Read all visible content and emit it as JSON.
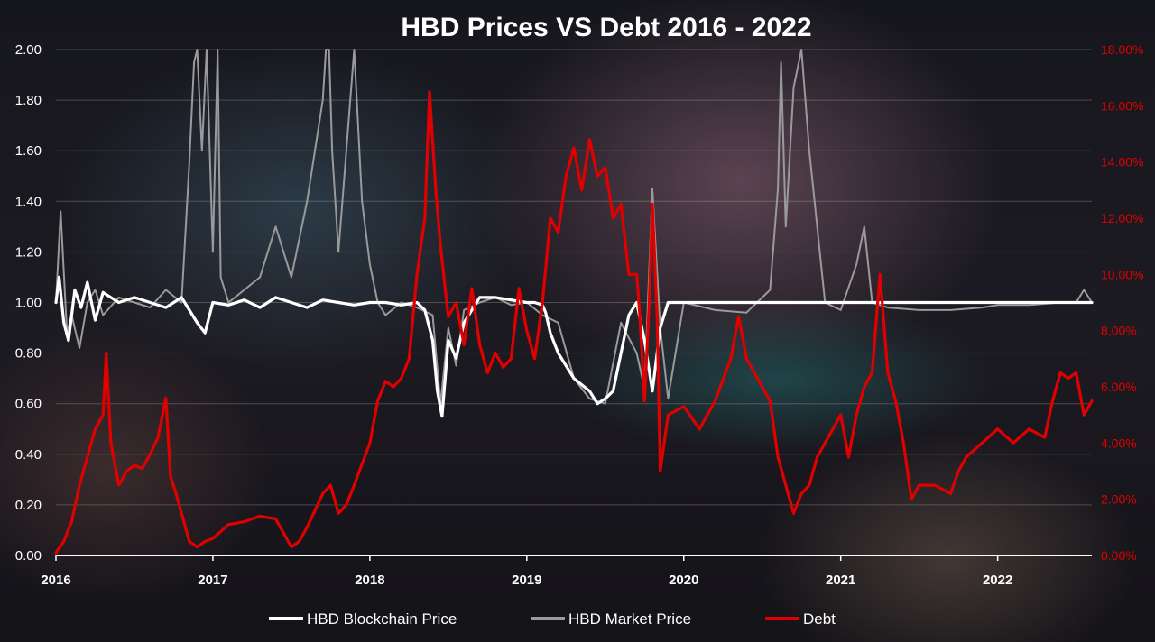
{
  "chart_data": {
    "type": "line",
    "title": "HBD Prices VS Debt 2016 - 2022",
    "xlabel": "",
    "ylabel": "",
    "x_range": [
      2016.0,
      2022.6
    ],
    "x_ticks": [
      "2016",
      "2017",
      "2018",
      "2019",
      "2020",
      "2021",
      "2022"
    ],
    "y_left": {
      "range": [
        0,
        2.0
      ],
      "ticks": [
        "0.00",
        "0.20",
        "0.40",
        "0.60",
        "0.80",
        "1.00",
        "1.20",
        "1.40",
        "1.60",
        "1.80",
        "2.00"
      ]
    },
    "y_right": {
      "range": [
        0,
        18
      ],
      "ticks": [
        "0.00%",
        "2.00%",
        "4.00%",
        "6.00%",
        "8.00%",
        "10.00%",
        "12.00%",
        "14.00%",
        "16.00%",
        "18.00%"
      ]
    },
    "grid": true,
    "legend": "bottom",
    "colors": {
      "blockchain": "#ffffff",
      "market": "#9a9a9a",
      "debt": "#e00000",
      "right_axis": "#e00000"
    },
    "series": [
      {
        "name": "HBD Market Price",
        "axis": "left",
        "x": [
          2016.0,
          2016.03,
          2016.07,
          2016.1,
          2016.15,
          2016.2,
          2016.25,
          2016.3,
          2016.4,
          2016.5,
          2016.6,
          2016.7,
          2016.8,
          2016.85,
          2016.88,
          2016.9,
          2016.93,
          2016.96,
          2017.0,
          2017.03,
          2017.05,
          2017.1,
          2017.2,
          2017.3,
          2017.4,
          2017.5,
          2017.6,
          2017.7,
          2017.72,
          2017.74,
          2017.76,
          2017.8,
          2017.9,
          2017.95,
          2018.0,
          2018.05,
          2018.1,
          2018.2,
          2018.3,
          2018.4,
          2018.45,
          2018.5,
          2018.55,
          2018.6,
          2018.7,
          2018.8,
          2018.9,
          2019.0,
          2019.1,
          2019.2,
          2019.3,
          2019.4,
          2019.5,
          2019.6,
          2019.7,
          2019.75,
          2019.8,
          2019.85,
          2019.9,
          2020.0,
          2020.2,
          2020.4,
          2020.55,
          2020.6,
          2020.62,
          2020.65,
          2020.7,
          2020.75,
          2020.8,
          2020.9,
          2021.0,
          2021.1,
          2021.15,
          2021.2,
          2021.3,
          2021.5,
          2021.7,
          2021.9,
          2022.0,
          2022.2,
          2022.4,
          2022.5,
          2022.55,
          2022.6
        ],
        "y": [
          1.0,
          1.36,
          0.88,
          0.95,
          0.82,
          1.0,
          1.05,
          0.95,
          1.02,
          1.0,
          0.98,
          1.05,
          1.0,
          1.55,
          1.95,
          2.0,
          1.6,
          2.0,
          1.2,
          2.0,
          1.1,
          1.0,
          1.05,
          1.1,
          1.3,
          1.1,
          1.4,
          1.8,
          2.0,
          2.0,
          1.6,
          1.2,
          2.0,
          1.4,
          1.15,
          1.0,
          0.95,
          1.0,
          0.98,
          0.95,
          0.6,
          0.9,
          0.75,
          0.97,
          1.0,
          1.02,
          0.99,
          1.0,
          0.95,
          0.92,
          0.7,
          0.62,
          0.6,
          0.92,
          0.8,
          0.66,
          1.45,
          0.9,
          0.62,
          1.0,
          0.97,
          0.96,
          1.05,
          1.45,
          1.95,
          1.3,
          1.85,
          2.0,
          1.6,
          1.0,
          0.97,
          1.15,
          1.3,
          1.0,
          0.98,
          0.97,
          0.97,
          0.98,
          0.99,
          0.99,
          1.0,
          1.0,
          1.05,
          1.0
        ]
      },
      {
        "name": "HBD Blockchain Price",
        "axis": "left",
        "x": [
          2016.0,
          2016.02,
          2016.05,
          2016.08,
          2016.12,
          2016.16,
          2016.2,
          2016.25,
          2016.3,
          2016.4,
          2016.5,
          2016.6,
          2016.7,
          2016.8,
          2016.9,
          2016.95,
          2017.0,
          2017.1,
          2017.2,
          2017.3,
          2017.4,
          2017.5,
          2017.6,
          2017.7,
          2017.8,
          2017.9,
          2018.0,
          2018.1,
          2018.2,
          2018.3,
          2018.35,
          2018.4,
          2018.43,
          2018.46,
          2018.5,
          2018.55,
          2018.6,
          2018.7,
          2018.8,
          2018.9,
          2019.0,
          2019.05,
          2019.1,
          2019.12,
          2019.15,
          2019.2,
          2019.3,
          2019.4,
          2019.45,
          2019.5,
          2019.55,
          2019.6,
          2019.65,
          2019.7,
          2019.75,
          2019.8,
          2019.85,
          2019.9,
          2020.0,
          2020.2,
          2020.4,
          2020.6,
          2020.8,
          2021.0,
          2021.2,
          2021.4,
          2021.6,
          2021.8,
          2022.0,
          2022.2,
          2022.4,
          2022.6
        ],
        "y": [
          1.0,
          1.1,
          0.92,
          0.85,
          1.05,
          0.98,
          1.08,
          0.93,
          1.04,
          1.0,
          1.02,
          1.0,
          0.98,
          1.02,
          0.92,
          0.88,
          1.0,
          0.99,
          1.01,
          0.98,
          1.02,
          1.0,
          0.98,
          1.01,
          1.0,
          0.99,
          1.0,
          1.0,
          0.99,
          1.0,
          0.97,
          0.85,
          0.65,
          0.55,
          0.85,
          0.78,
          0.92,
          1.02,
          1.02,
          1.01,
          1.0,
          1.0,
          0.99,
          0.96,
          0.88,
          0.8,
          0.7,
          0.65,
          0.6,
          0.62,
          0.65,
          0.8,
          0.95,
          1.0,
          0.85,
          0.65,
          0.9,
          1.0,
          1.0,
          1.0,
          1.0,
          1.0,
          1.0,
          1.0,
          1.0,
          1.0,
          1.0,
          1.0,
          1.0,
          1.0,
          1.0,
          1.0
        ]
      },
      {
        "name": "Debt",
        "axis": "right",
        "x": [
          2016.0,
          2016.05,
          2016.1,
          2016.15,
          2016.2,
          2016.25,
          2016.3,
          2016.32,
          2016.35,
          2016.4,
          2016.45,
          2016.5,
          2016.55,
          2016.6,
          2016.65,
          2016.7,
          2016.73,
          2016.76,
          2016.8,
          2016.85,
          2016.9,
          2016.95,
          2017.0,
          2017.1,
          2017.2,
          2017.3,
          2017.4,
          2017.45,
          2017.5,
          2017.55,
          2017.6,
          2017.7,
          2017.75,
          2017.8,
          2017.85,
          2017.9,
          2018.0,
          2018.05,
          2018.1,
          2018.15,
          2018.2,
          2018.25,
          2018.3,
          2018.35,
          2018.38,
          2018.42,
          2018.45,
          2018.5,
          2018.55,
          2018.6,
          2018.65,
          2018.7,
          2018.75,
          2018.8,
          2018.85,
          2018.9,
          2018.95,
          2019.0,
          2019.05,
          2019.1,
          2019.15,
          2019.2,
          2019.25,
          2019.3,
          2019.35,
          2019.4,
          2019.45,
          2019.5,
          2019.55,
          2019.6,
          2019.65,
          2019.7,
          2019.72,
          2019.75,
          2019.78,
          2019.8,
          2019.83,
          2019.85,
          2019.9,
          2020.0,
          2020.1,
          2020.2,
          2020.3,
          2020.35,
          2020.4,
          2020.5,
          2020.55,
          2020.6,
          2020.65,
          2020.7,
          2020.75,
          2020.8,
          2020.85,
          2020.9,
          2021.0,
          2021.05,
          2021.1,
          2021.15,
          2021.2,
          2021.25,
          2021.3,
          2021.35,
          2021.4,
          2021.45,
          2021.5,
          2021.6,
          2021.7,
          2021.75,
          2021.8,
          2021.9,
          2022.0,
          2022.1,
          2022.2,
          2022.3,
          2022.35,
          2022.4,
          2022.45,
          2022.5,
          2022.55,
          2022.6
        ],
        "y": [
          0.1,
          0.5,
          1.2,
          2.5,
          3.5,
          4.5,
          5.0,
          7.2,
          4.0,
          2.5,
          3.0,
          3.2,
          3.1,
          3.6,
          4.2,
          5.6,
          2.8,
          2.3,
          1.5,
          0.5,
          0.3,
          0.5,
          0.6,
          1.1,
          1.2,
          1.4,
          1.3,
          0.8,
          0.3,
          0.5,
          1.0,
          2.2,
          2.5,
          1.5,
          1.8,
          2.5,
          4.0,
          5.5,
          6.2,
          6.0,
          6.3,
          7.0,
          10.0,
          12.0,
          16.5,
          13.0,
          11.0,
          8.5,
          9.0,
          7.5,
          9.5,
          7.5,
          6.5,
          7.2,
          6.7,
          7.0,
          9.5,
          8.0,
          7.0,
          9.0,
          12.0,
          11.5,
          13.5,
          14.5,
          13.0,
          14.8,
          13.5,
          13.8,
          12.0,
          12.5,
          10.0,
          10.0,
          8.5,
          5.5,
          9.0,
          12.5,
          8.5,
          3.0,
          5.0,
          5.3,
          4.5,
          5.5,
          7.0,
          8.5,
          7.0,
          6.0,
          5.5,
          3.5,
          2.5,
          1.5,
          2.2,
          2.5,
          3.5,
          4.0,
          5.0,
          3.5,
          5.0,
          6.0,
          6.5,
          10.0,
          6.5,
          5.5,
          4.0,
          2.0,
          2.5,
          2.5,
          2.2,
          3.0,
          3.5,
          4.0,
          4.5,
          4.0,
          4.5,
          4.2,
          5.5,
          6.5,
          6.3,
          6.5,
          5.0,
          5.5
        ]
      }
    ]
  }
}
